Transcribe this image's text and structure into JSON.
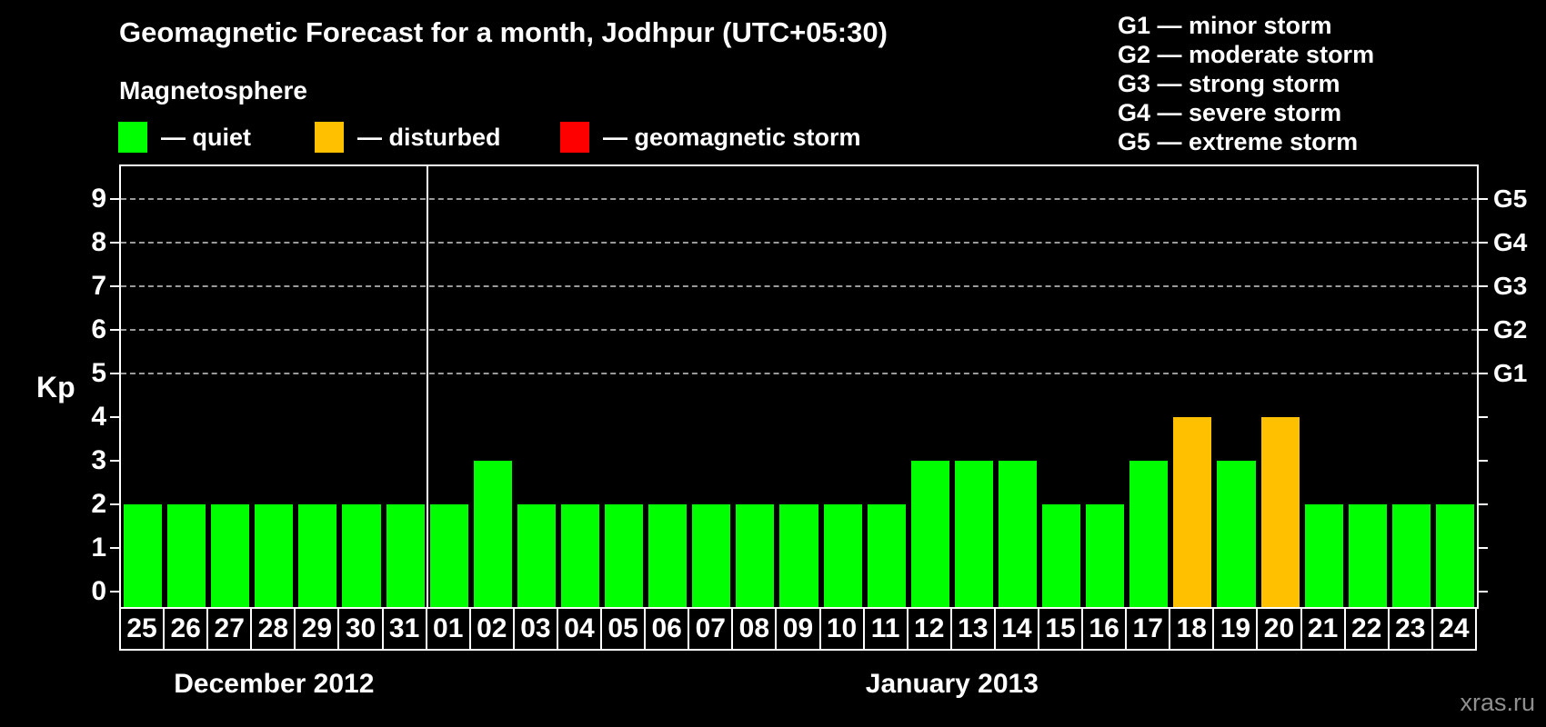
{
  "title": "Geomagnetic Forecast for a month, Jodhpur (UTC+05:30)",
  "legend": {
    "heading": "Magnetosphere",
    "items": [
      {
        "name": "quiet",
        "label": "— quiet",
        "color": "#00ff00"
      },
      {
        "name": "disturbed",
        "label": "— disturbed",
        "color": "#ffc000"
      },
      {
        "name": "storm",
        "label": "— geomagnetic storm",
        "color": "#ff0000"
      }
    ]
  },
  "storm_legend": {
    "items": [
      "G1 — minor storm",
      "G2 — moderate storm",
      "G3 — strong storm",
      "G4 — severe storm",
      "G5 — extreme storm"
    ]
  },
  "watermark": "xras.ru",
  "chart_data": {
    "type": "bar",
    "title": "Geomagnetic Forecast for a month, Jodhpur (UTC+05:30)",
    "ylabel": "Kp",
    "ylim": [
      -0.35,
      9.75
    ],
    "yticks": [
      0,
      1,
      2,
      3,
      4,
      5,
      6,
      7,
      8,
      9
    ],
    "grid": "dashed horizontal at storm levels only",
    "grid_levels": [
      {
        "kp": 5,
        "label": "G1"
      },
      {
        "kp": 6,
        "label": "G2"
      },
      {
        "kp": 7,
        "label": "G3"
      },
      {
        "kp": 8,
        "label": "G4"
      },
      {
        "kp": 9,
        "label": "G5"
      }
    ],
    "months": [
      {
        "label": "December 2012",
        "days": 7
      },
      {
        "label": "January 2013",
        "days": 24
      }
    ],
    "categories": [
      "25",
      "26",
      "27",
      "28",
      "29",
      "30",
      "31",
      "01",
      "02",
      "03",
      "04",
      "05",
      "06",
      "07",
      "08",
      "09",
      "10",
      "11",
      "12",
      "13",
      "14",
      "15",
      "16",
      "17",
      "18",
      "19",
      "20",
      "21",
      "22",
      "23",
      "24"
    ],
    "values": [
      2,
      2,
      2,
      2,
      2,
      2,
      2,
      2,
      3,
      2,
      2,
      2,
      2,
      2,
      2,
      2,
      2,
      2,
      3,
      3,
      3,
      2,
      2,
      3,
      4,
      3,
      4,
      2,
      2,
      2,
      2
    ],
    "states": [
      "quiet",
      "quiet",
      "quiet",
      "quiet",
      "quiet",
      "quiet",
      "quiet",
      "quiet",
      "quiet",
      "quiet",
      "quiet",
      "quiet",
      "quiet",
      "quiet",
      "quiet",
      "quiet",
      "quiet",
      "quiet",
      "quiet",
      "quiet",
      "quiet",
      "quiet",
      "quiet",
      "quiet",
      "disturbed",
      "quiet",
      "disturbed",
      "quiet",
      "quiet",
      "quiet",
      "quiet"
    ],
    "colors": {
      "quiet": "#00ff00",
      "disturbed": "#ffc000",
      "storm": "#ff0000"
    },
    "legend_position": "top-left and top-right",
    "background": "#000000"
  }
}
